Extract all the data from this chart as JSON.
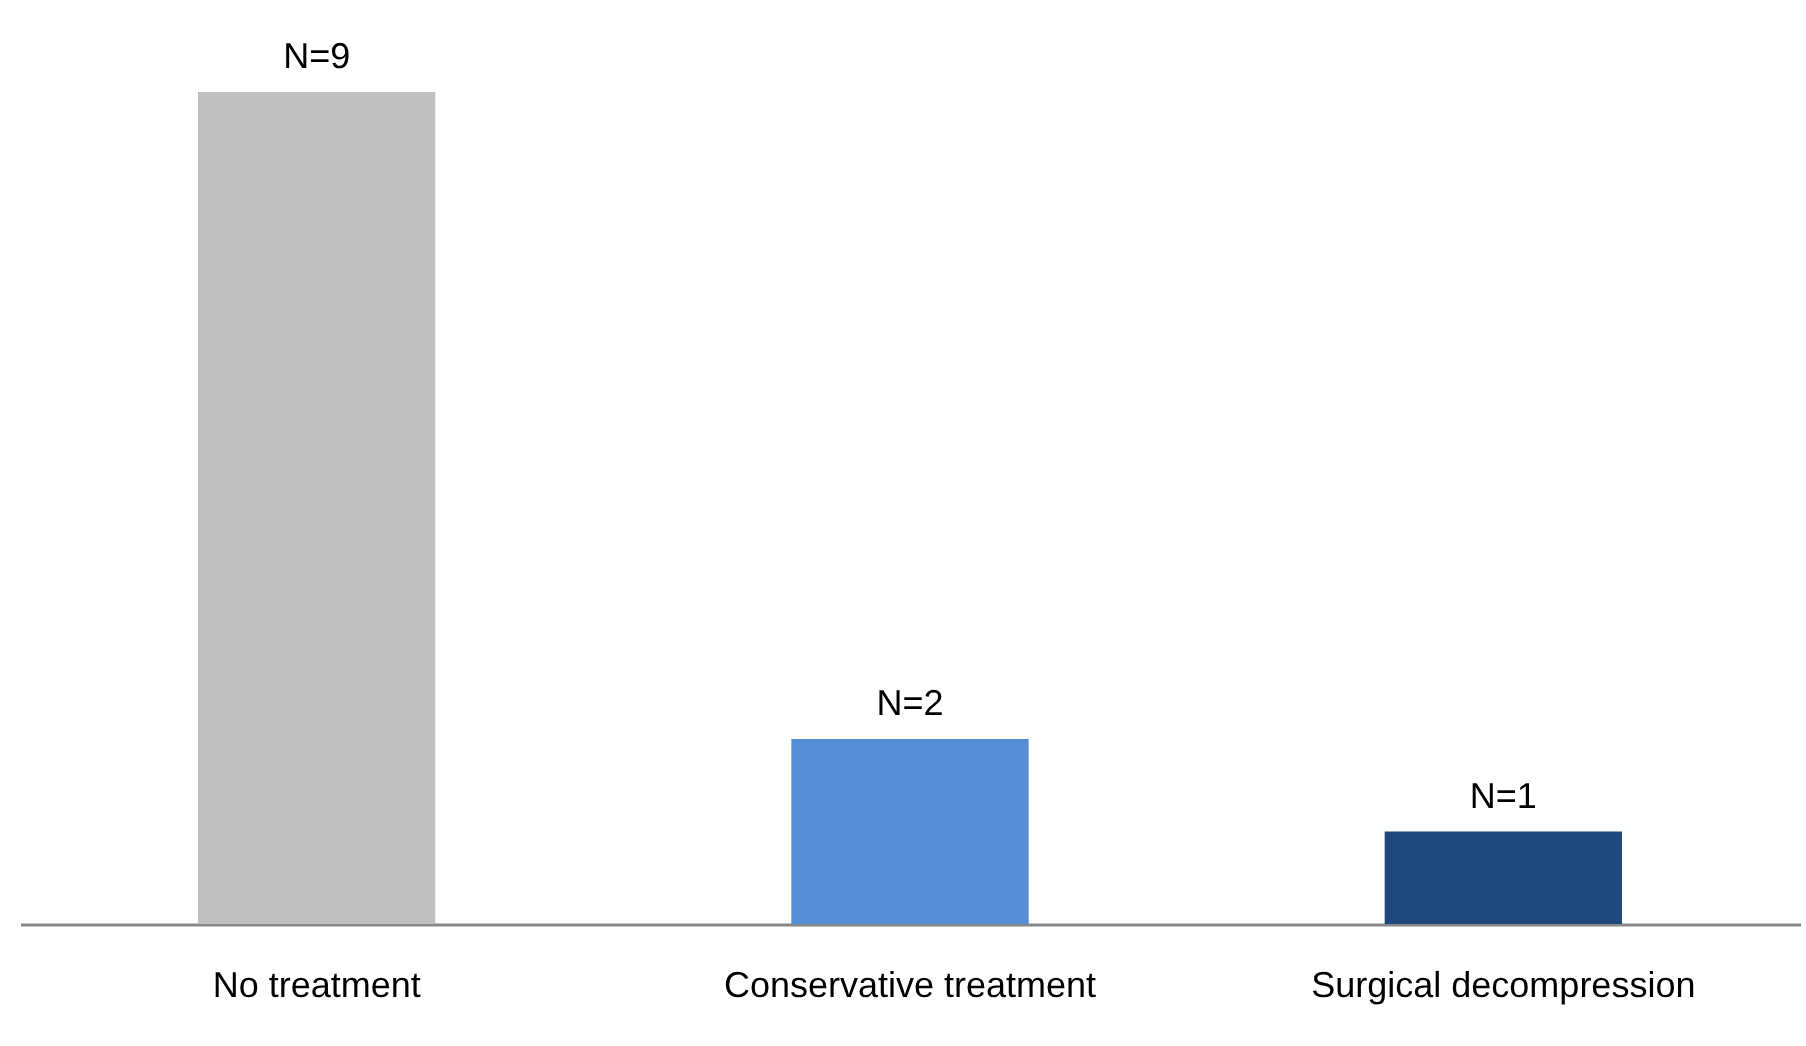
{
  "chart_data": {
    "type": "bar",
    "categories": [
      "No treatment",
      "Conservative treatment",
      "Surgical decompression"
    ],
    "values": [
      9,
      2,
      1
    ],
    "colors": [
      "#bfbfbf",
      "#558ed5",
      "#1f497d"
    ],
    "value_labels": [
      "N=9",
      "N=2",
      "N=1"
    ]
  }
}
